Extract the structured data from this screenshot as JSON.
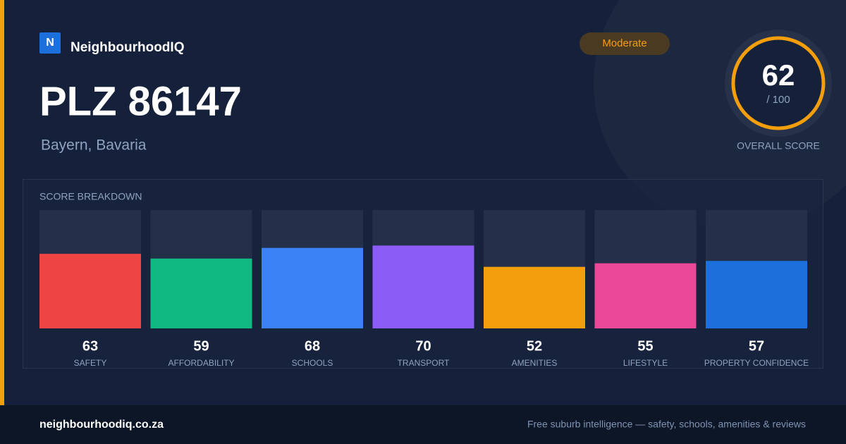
{
  "brand": "NeighbourhoodIQ",
  "logo_letter": "N",
  "badge": "Moderate",
  "title": "PLZ 86147",
  "subtitle": "Bayern, Bavaria",
  "overall": {
    "score": 62,
    "scale": "/ 100",
    "label": "OVERALL SCORE"
  },
  "chart_data": {
    "type": "bar",
    "title": "SCORE BREAKDOWN",
    "categories": [
      "SAFETY",
      "AFFORDABILITY",
      "SCHOOLS",
      "TRANSPORT",
      "AMENITIES",
      "LIFESTYLE",
      "PROPERTY CONFIDENCE"
    ],
    "values": [
      63,
      59,
      68,
      70,
      52,
      55,
      57
    ],
    "colors": [
      "#ef4444",
      "#10b981",
      "#3b82f6",
      "#8b5cf6",
      "#f59e0b",
      "#ec4899",
      "#1d6fdc"
    ],
    "ylim": [
      0,
      100
    ]
  },
  "footer": {
    "url": "neighbourhoodiq.co.za",
    "tagline": "Free suburb intelligence — safety, schools, amenities & reviews"
  }
}
